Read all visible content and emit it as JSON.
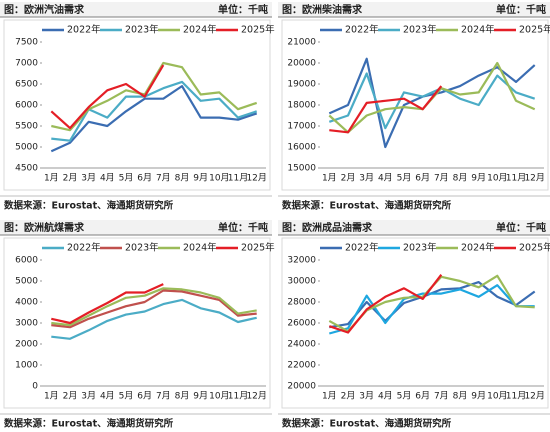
{
  "chart_data": [
    {
      "type": "line",
      "header": "图：欧洲汽油需求",
      "unit": "单位：千吨",
      "source": "数据来源：Eurostat、海通期货研究所",
      "categories": [
        "1月",
        "2月",
        "3月",
        "4月",
        "5月",
        "6月",
        "7月",
        "8月",
        "9月",
        "10月",
        "11月",
        "12月"
      ],
      "ylim": [
        4500,
        7500
      ],
      "yticks": [
        4500,
        5000,
        5500,
        6000,
        6500,
        7000,
        7500
      ],
      "series": [
        {
          "name": "2022年",
          "color": "#3b6db2",
          "values": [
            4900,
            5100,
            5600,
            5500,
            5850,
            6150,
            6150,
            6450,
            5700,
            5700,
            5650,
            5800
          ]
        },
        {
          "name": "2023年",
          "color": "#4bacc6",
          "values": [
            5200,
            5150,
            5900,
            5700,
            6200,
            6200,
            6400,
            6550,
            6100,
            6150,
            5700,
            5850
          ]
        },
        {
          "name": "2024年",
          "color": "#9bbb59",
          "values": [
            5500,
            5400,
            5900,
            6100,
            6350,
            6250,
            7000,
            6900,
            6250,
            6300,
            5900,
            6050
          ]
        },
        {
          "name": "2025年",
          "color": "#e41e26",
          "values": [
            5850,
            5450,
            5950,
            6350,
            6500,
            6200,
            6950,
            null,
            null,
            null,
            null,
            null
          ]
        }
      ]
    },
    {
      "type": "line",
      "header": "图：欧洲柴油需求",
      "unit": "单位：千吨",
      "source": "数据来源：Eurostat、海通期货研究所",
      "categories": [
        "1月",
        "2月",
        "3月",
        "4月",
        "5月",
        "6月",
        "7月",
        "8月",
        "9月",
        "10月",
        "11月",
        "12月"
      ],
      "ylim": [
        15000,
        21000
      ],
      "yticks": [
        15000,
        16000,
        17000,
        18000,
        19000,
        20000,
        21000
      ],
      "series": [
        {
          "name": "2022年",
          "color": "#3b6db2",
          "values": [
            17600,
            18000,
            20200,
            16000,
            18000,
            18400,
            18600,
            18900,
            19400,
            19800,
            19100,
            19900
          ]
        },
        {
          "name": "2023年",
          "color": "#4bacc6",
          "values": [
            17200,
            17500,
            19500,
            16900,
            18600,
            18400,
            18800,
            18300,
            18000,
            19400,
            18600,
            18300
          ]
        },
        {
          "name": "2024年",
          "color": "#9bbb59",
          "values": [
            17500,
            16700,
            17500,
            17800,
            17900,
            17800,
            18800,
            18500,
            18600,
            20000,
            18200,
            17800
          ]
        },
        {
          "name": "2025年",
          "color": "#e41e26",
          "values": [
            16800,
            16700,
            18100,
            18200,
            18300,
            17800,
            18900,
            null,
            null,
            null,
            null,
            null
          ]
        }
      ]
    },
    {
      "type": "line",
      "header": "图：欧洲航煤需求",
      "unit": "单位：千吨",
      "source": "数据来源：Eurostat、海通期货研究所",
      "categories": [
        "1月",
        "2月",
        "3月",
        "4月",
        "5月",
        "6月",
        "7月",
        "8月",
        "9月",
        "10月",
        "11月",
        "12月"
      ],
      "ylim": [
        0,
        6000
      ],
      "yticks": [
        0,
        1000,
        2000,
        3000,
        4000,
        5000,
        6000
      ],
      "series": [
        {
          "name": "2022年",
          "color": "#4bacc6",
          "values": [
            2350,
            2250,
            2650,
            3100,
            3400,
            3550,
            3900,
            4100,
            3700,
            3500,
            3050,
            3250
          ]
        },
        {
          "name": "2023年",
          "color": "#c0504d",
          "values": [
            2900,
            2800,
            3200,
            3500,
            3800,
            4000,
            4550,
            4500,
            4300,
            4100,
            3350,
            3450
          ]
        },
        {
          "name": "2024年",
          "color": "#9bbb59",
          "values": [
            3000,
            2900,
            3350,
            3800,
            4200,
            4300,
            4650,
            4600,
            4450,
            4200,
            3450,
            3600
          ]
        },
        {
          "name": "2025年",
          "color": "#e41e26",
          "values": [
            3200,
            3000,
            3500,
            3950,
            4450,
            4450,
            4850,
            null,
            null,
            null,
            null,
            null
          ]
        }
      ]
    },
    {
      "type": "line",
      "header": "图：欧洲成品油需求",
      "unit": "单位：千吨",
      "source": "数据来源：Eurostat、海通期货研究所",
      "categories": [
        "1月",
        "2月",
        "3月",
        "4月",
        "5月",
        "6月",
        "7月",
        "8月",
        "9月",
        "10月",
        "11月",
        "12月"
      ],
      "ylim": [
        20000,
        32000
      ],
      "yticks": [
        20000,
        22000,
        24000,
        26000,
        28000,
        30000,
        32000
      ],
      "series": [
        {
          "name": "2022年",
          "color": "#3b6db2",
          "values": [
            25600,
            25900,
            28000,
            26200,
            27900,
            28500,
            29200,
            29300,
            29900,
            28500,
            27700,
            29000
          ]
        },
        {
          "name": "2023年",
          "color": "#1ea7e0",
          "values": [
            25000,
            25500,
            28600,
            26000,
            28300,
            28800,
            28800,
            29200,
            28500,
            29600,
            27600,
            27600
          ]
        },
        {
          "name": "2024年",
          "color": "#9bbb59",
          "values": [
            26200,
            25200,
            27200,
            28000,
            28400,
            28500,
            30400,
            30000,
            29400,
            30500,
            27600,
            27500
          ]
        },
        {
          "name": "2025年",
          "color": "#e41e26",
          "values": [
            25700,
            25100,
            27300,
            28500,
            29300,
            28300,
            30600,
            null,
            null,
            null,
            null,
            null
          ]
        }
      ]
    }
  ]
}
